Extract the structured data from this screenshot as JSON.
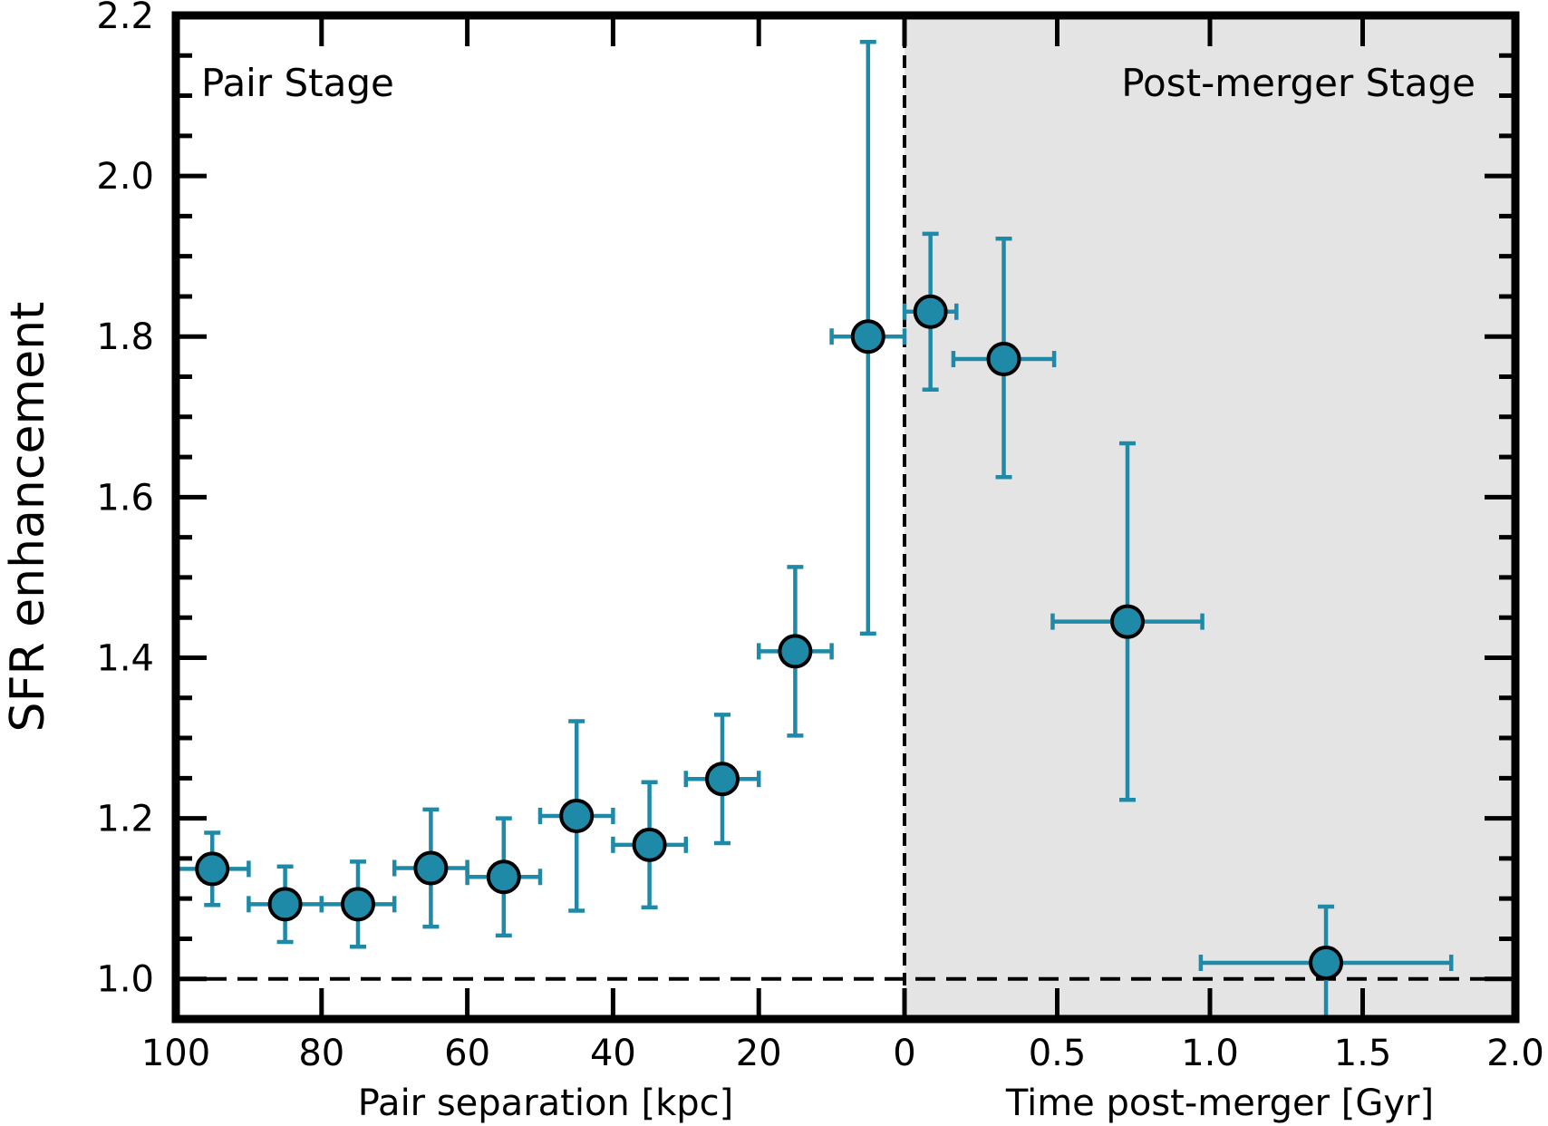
{
  "chart_data": {
    "type": "scatter",
    "ylabel": "SFR enhancement",
    "ylim": [
      0.95,
      2.2
    ],
    "yticks": [
      "1.0",
      "1.2",
      "1.4",
      "1.6",
      "1.8",
      "2.0",
      "2.2"
    ],
    "reference_line_y": 1.0,
    "colors": {
      "marker_fill": "#1f8aa8",
      "error_bar": "#1f8aa8",
      "marker_edge": "#000000",
      "shaded_region": "#e4e4e4"
    },
    "left_panel": {
      "label": "Pair Stage",
      "xlabel": "Pair separation [kpc]",
      "xlim": [
        100,
        0
      ],
      "xticks": [
        "100",
        "80",
        "60",
        "40",
        "20",
        "0"
      ],
      "points": [
        {
          "x": 95,
          "y": 1.137,
          "xerr": 5,
          "yerr_low": 0.045,
          "yerr_high": 0.045
        },
        {
          "x": 85,
          "y": 1.093,
          "xerr": 5,
          "yerr_low": 0.047,
          "yerr_high": 0.047
        },
        {
          "x": 75,
          "y": 1.093,
          "xerr": 5,
          "yerr_low": 0.053,
          "yerr_high": 0.053
        },
        {
          "x": 65,
          "y": 1.138,
          "xerr": 5,
          "yerr_low": 0.073,
          "yerr_high": 0.073
        },
        {
          "x": 55,
          "y": 1.127,
          "xerr": 5,
          "yerr_low": 0.073,
          "yerr_high": 0.073
        },
        {
          "x": 45,
          "y": 1.203,
          "xerr": 5,
          "yerr_low": 0.118,
          "yerr_high": 0.118
        },
        {
          "x": 35,
          "y": 1.167,
          "xerr": 5,
          "yerr_low": 0.078,
          "yerr_high": 0.078
        },
        {
          "x": 25,
          "y": 1.249,
          "xerr": 5,
          "yerr_low": 0.08,
          "yerr_high": 0.08
        },
        {
          "x": 15,
          "y": 1.408,
          "xerr": 5,
          "yerr_low": 0.105,
          "yerr_high": 0.105
        },
        {
          "x": 5,
          "y": 1.8,
          "xerr": 5,
          "yerr_low": 0.37,
          "yerr_high": 0.367
        }
      ]
    },
    "right_panel": {
      "label": "Post-merger Stage",
      "xlabel": "Time post-merger [Gyr]",
      "xlim": [
        0,
        2.0
      ],
      "xticks": [
        "0.5",
        "1.0",
        "1.5",
        "2.0"
      ],
      "points": [
        {
          "x": 0.085,
          "y": 1.831,
          "xerr_low": 0.085,
          "xerr_high": 0.085,
          "yerr_low": 0.097,
          "yerr_high": 0.097
        },
        {
          "x": 0.325,
          "y": 1.772,
          "xerr_low": 0.165,
          "xerr_high": 0.165,
          "yerr_low": 0.147,
          "yerr_high": 0.15
        },
        {
          "x": 0.73,
          "y": 1.445,
          "xerr_low": 0.245,
          "xerr_high": 0.245,
          "yerr_low": 0.222,
          "yerr_high": 0.222
        },
        {
          "x": 1.38,
          "y": 1.02,
          "xerr_low": 0.41,
          "xerr_high": 0.41,
          "yerr_low": 0.07,
          "yerr_high": 0.07
        }
      ]
    }
  }
}
